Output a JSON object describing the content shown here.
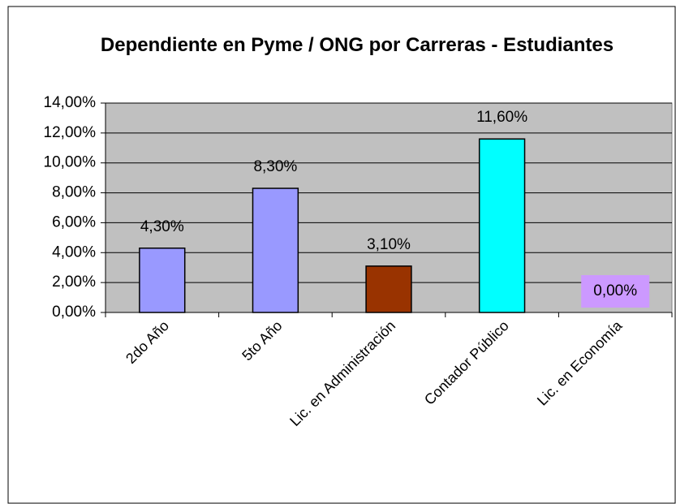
{
  "chart_data": {
    "type": "bar",
    "title": "Dependiente en Pyme / ONG por Carreras - Estudiantes",
    "categories": [
      "2do Año",
      "5to Año",
      "Lic. en Administración",
      "Contador Público",
      "Lic. en Economía"
    ],
    "values": [
      4.3,
      8.3,
      3.1,
      11.6,
      0
    ],
    "value_labels": [
      "4,30%",
      "8,30%",
      "3,10%",
      "11,60%",
      "0,00%"
    ],
    "colors": [
      "#9999ff",
      "#9999ff",
      "#993300",
      "#00ffff",
      "#cc99ff"
    ],
    "label_background": [
      null,
      null,
      null,
      null,
      "#cc99ff"
    ],
    "ylim": [
      0,
      14
    ],
    "yticks": [
      {
        "value": 0,
        "label": "0,00%"
      },
      {
        "value": 2,
        "label": "2,00%"
      },
      {
        "value": 4,
        "label": "4,00%"
      },
      {
        "value": 6,
        "label": "6,00%"
      },
      {
        "value": 8,
        "label": "8,00%"
      },
      {
        "value": 10,
        "label": "10,00%"
      },
      {
        "value": 12,
        "label": "12,00%"
      },
      {
        "value": 14,
        "label": "14,00%"
      }
    ],
    "grid": true
  }
}
